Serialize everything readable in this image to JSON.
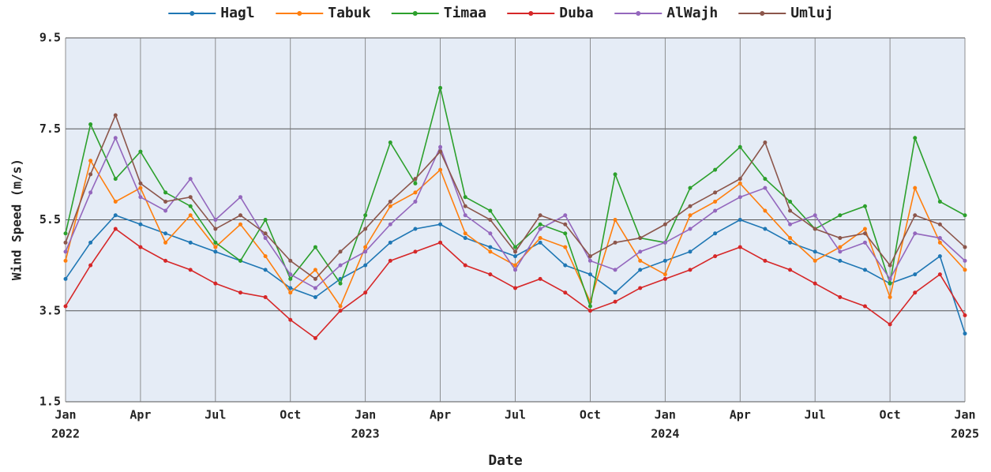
{
  "chart_data": {
    "type": "line",
    "x_label": "Date",
    "y_label": "Wind Speed (m/s)",
    "x": [
      "2022-01",
      "2022-02",
      "2022-03",
      "2022-04",
      "2022-05",
      "2022-06",
      "2022-07",
      "2022-08",
      "2022-09",
      "2022-10",
      "2022-11",
      "2022-12",
      "2023-01",
      "2023-02",
      "2023-03",
      "2023-04",
      "2023-05",
      "2023-06",
      "2023-07",
      "2023-08",
      "2023-09",
      "2023-10",
      "2023-11",
      "2023-12",
      "2024-01",
      "2024-02",
      "2024-03",
      "2024-04",
      "2024-05",
      "2024-06",
      "2024-07",
      "2024-08",
      "2024-09",
      "2024-10",
      "2024-11",
      "2024-12",
      "2025-01"
    ],
    "series": [
      {
        "name": "Hagl",
        "color": "#1f77b4",
        "values": [
          4.2,
          5.0,
          5.6,
          5.4,
          5.2,
          5.0,
          4.8,
          4.6,
          4.4,
          4.0,
          3.8,
          4.2,
          4.5,
          5.0,
          5.3,
          5.4,
          5.1,
          4.9,
          4.7,
          5.0,
          4.5,
          4.3,
          3.9,
          4.4,
          4.6,
          4.8,
          5.2,
          5.5,
          5.3,
          5.0,
          4.8,
          4.6,
          4.4,
          4.1,
          4.3,
          4.7,
          3.0
        ]
      },
      {
        "name": "Tabuk",
        "color": "#ff7f0e",
        "values": [
          4.6,
          6.8,
          5.9,
          6.2,
          5.0,
          5.6,
          4.9,
          5.4,
          4.7,
          3.9,
          4.4,
          3.6,
          4.9,
          5.8,
          6.1,
          6.6,
          5.2,
          4.8,
          4.5,
          5.1,
          4.9,
          3.7,
          5.5,
          4.6,
          4.3,
          5.6,
          5.9,
          6.3,
          5.7,
          5.1,
          4.6,
          4.9,
          5.3,
          3.8,
          6.2,
          5.0,
          4.4
        ]
      },
      {
        "name": "Timaa",
        "color": "#2ca02c",
        "values": [
          5.2,
          7.6,
          6.4,
          7.0,
          6.1,
          5.8,
          5.0,
          4.6,
          5.5,
          4.2,
          4.9,
          4.1,
          5.6,
          7.2,
          6.3,
          8.4,
          6.0,
          5.7,
          4.9,
          5.4,
          5.2,
          3.6,
          6.5,
          5.1,
          5.0,
          6.2,
          6.6,
          7.1,
          6.4,
          5.9,
          5.3,
          5.6,
          5.8,
          4.1,
          7.3,
          5.9,
          5.6
        ]
      },
      {
        "name": "Duba",
        "color": "#d62728",
        "values": [
          3.6,
          4.5,
          5.3,
          4.9,
          4.6,
          4.4,
          4.1,
          3.9,
          3.8,
          3.3,
          2.9,
          3.5,
          3.9,
          4.6,
          4.8,
          5.0,
          4.5,
          4.3,
          4.0,
          4.2,
          3.9,
          3.5,
          3.7,
          4.0,
          4.2,
          4.4,
          4.7,
          4.9,
          4.6,
          4.4,
          4.1,
          3.8,
          3.6,
          3.2,
          3.9,
          4.3,
          3.4
        ]
      },
      {
        "name": "AlWajh",
        "color": "#9467bd",
        "values": [
          4.8,
          6.1,
          7.3,
          6.0,
          5.7,
          6.4,
          5.5,
          6.0,
          5.1,
          4.3,
          4.0,
          4.5,
          4.8,
          5.4,
          5.9,
          7.1,
          5.6,
          5.2,
          4.4,
          5.3,
          5.6,
          4.6,
          4.4,
          4.8,
          5.0,
          5.3,
          5.7,
          6.0,
          6.2,
          5.4,
          5.6,
          4.8,
          5.0,
          4.2,
          5.2,
          5.1,
          4.6
        ]
      },
      {
        "name": "Umluj",
        "color": "#8c564b",
        "values": [
          5.0,
          6.5,
          7.8,
          6.3,
          5.9,
          6.0,
          5.3,
          5.6,
          5.2,
          4.6,
          4.2,
          4.8,
          5.3,
          5.9,
          6.4,
          7.0,
          5.8,
          5.5,
          4.8,
          5.6,
          5.4,
          4.7,
          5.0,
          5.1,
          5.4,
          5.8,
          6.1,
          6.4,
          7.2,
          5.7,
          5.3,
          5.1,
          5.2,
          4.5,
          5.6,
          5.4,
          4.9
        ]
      }
    ],
    "xlim": [
      "2022-01",
      "2025-01"
    ],
    "xticks": [
      {
        "value": "2022-01",
        "label": [
          "Jan",
          "2022"
        ]
      },
      {
        "value": "2022-04",
        "label": [
          "Apr"
        ]
      },
      {
        "value": "2022-07",
        "label": [
          "Jul"
        ]
      },
      {
        "value": "2022-10",
        "label": [
          "Oct"
        ]
      },
      {
        "value": "2023-01",
        "label": [
          "Jan",
          "2023"
        ]
      },
      {
        "value": "2023-04",
        "label": [
          "Apr"
        ]
      },
      {
        "value": "2023-07",
        "label": [
          "Jul"
        ]
      },
      {
        "value": "2023-10",
        "label": [
          "Oct"
        ]
      },
      {
        "value": "2024-01",
        "label": [
          "Jan",
          "2024"
        ]
      },
      {
        "value": "2024-04",
        "label": [
          "Apr"
        ]
      },
      {
        "value": "2024-07",
        "label": [
          "Jul"
        ]
      },
      {
        "value": "2024-10",
        "label": [
          "Oct"
        ]
      },
      {
        "value": "2025-01",
        "label": [
          "Jan",
          "2025"
        ]
      }
    ],
    "ylim": [
      1.5,
      9.5
    ],
    "yticks": [
      1.5,
      3.5,
      5.5,
      7.5,
      9.5
    ],
    "grid": true,
    "legend_position": "top",
    "plot_background": "#e5ecf6"
  }
}
